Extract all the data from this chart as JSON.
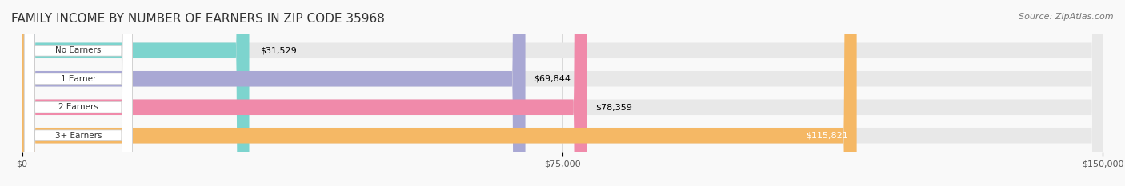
{
  "title": "FAMILY INCOME BY NUMBER OF EARNERS IN ZIP CODE 35968",
  "source": "Source: ZipAtlas.com",
  "categories": [
    "No Earners",
    "1 Earner",
    "2 Earners",
    "3+ Earners"
  ],
  "values": [
    31529,
    69844,
    78359,
    115821
  ],
  "bar_colors": [
    "#7dd4ce",
    "#a9a8d4",
    "#f08aaa",
    "#f5b865"
  ],
  "bar_bg_color": "#eeeeee",
  "label_values": [
    "$31,529",
    "$69,844",
    "$78,359",
    "$115,821"
  ],
  "xlim": [
    0,
    150000
  ],
  "xticks": [
    0,
    75000,
    150000
  ],
  "xtick_labels": [
    "$0",
    "$75,000",
    "$150,000"
  ],
  "title_fontsize": 11,
  "source_fontsize": 8,
  "bar_height": 0.55,
  "background_color": "#f9f9f9"
}
